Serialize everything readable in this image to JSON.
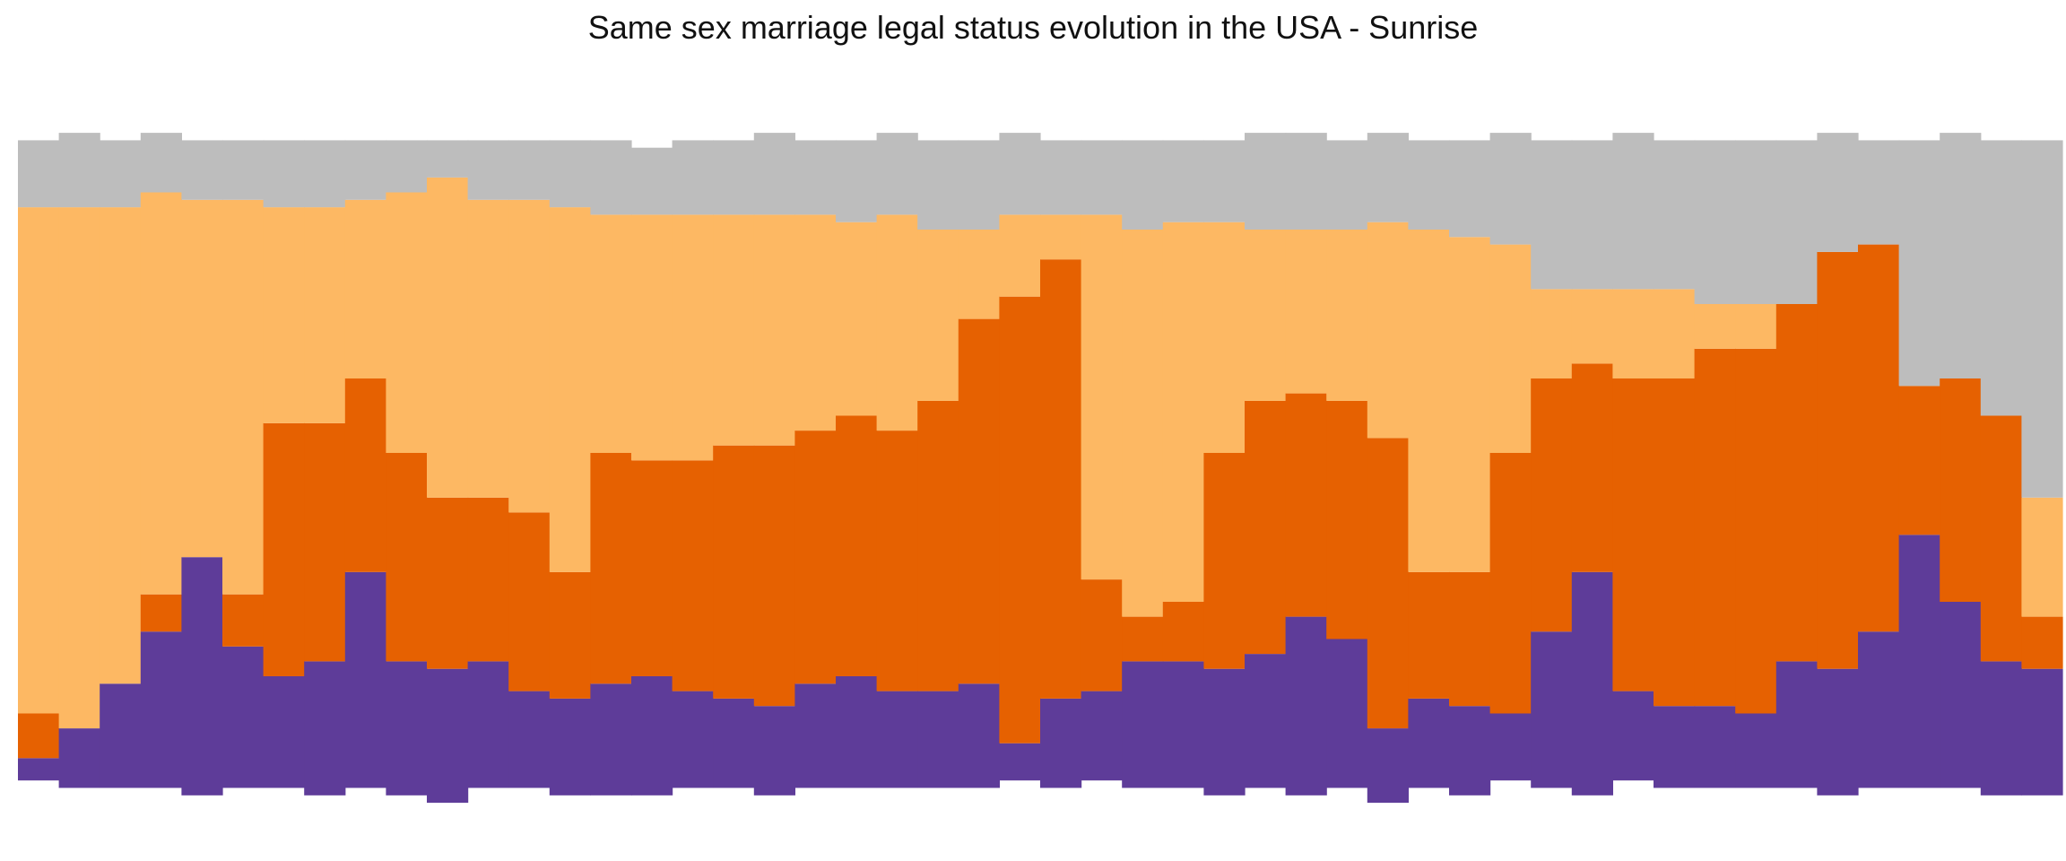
{
  "chart_data": {
    "type": "area",
    "title": "Same sex marriage legal status evolution in the USA - Sunrise",
    "xlabel": "",
    "ylabel": "",
    "axes_visible": false,
    "grid": false,
    "legend": "none",
    "layers_bottom_to_top": [
      "purple",
      "dark-orange",
      "light-orange",
      "gray"
    ],
    "colors": {
      "purple": "#5E3C99",
      "dark-orange": "#E66101",
      "light-orange": "#FDB863",
      "gray": "#BDBDBD"
    },
    "categories": [
      1,
      2,
      3,
      4,
      5,
      6,
      7,
      8,
      9,
      10,
      11,
      12,
      13,
      14,
      15,
      16,
      17,
      18,
      19,
      20,
      21,
      22,
      23,
      24,
      25,
      26,
      27,
      28,
      29,
      30,
      31,
      32,
      33,
      34,
      35,
      36,
      37,
      38,
      39,
      40,
      41,
      42,
      43,
      44,
      45,
      46,
      47,
      48,
      49,
      50
    ],
    "cumulative_tops": {
      "purple": [
        0.09,
        0.13,
        0.19,
        0.26,
        0.36,
        0.24,
        0.2,
        0.22,
        0.34,
        0.22,
        0.21,
        0.22,
        0.18,
        0.17,
        0.19,
        0.2,
        0.18,
        0.17,
        0.16,
        0.19,
        0.2,
        0.18,
        0.18,
        0.19,
        0.11,
        0.17,
        0.18,
        0.22,
        0.22,
        0.21,
        0.23,
        0.28,
        0.25,
        0.13,
        0.17,
        0.16,
        0.15,
        0.26,
        0.34,
        0.18,
        0.16,
        0.16,
        0.15,
        0.22,
        0.21,
        0.26,
        0.39,
        0.3,
        0.22,
        0.21
      ],
      "dark-orange": [
        0.15,
        0.13,
        0.19,
        0.31,
        0.33,
        0.31,
        0.54,
        0.54,
        0.6,
        0.5,
        0.44,
        0.44,
        0.42,
        0.34,
        0.5,
        0.49,
        0.49,
        0.51,
        0.51,
        0.53,
        0.55,
        0.53,
        0.57,
        0.68,
        0.71,
        0.76,
        0.33,
        0.28,
        0.3,
        0.5,
        0.57,
        0.58,
        0.57,
        0.52,
        0.34,
        0.34,
        0.5,
        0.6,
        0.62,
        0.6,
        0.6,
        0.64,
        0.64,
        0.7,
        0.77,
        0.78,
        0.59,
        0.6,
        0.55,
        0.28
      ],
      "light-orange": [
        0.83,
        0.83,
        0.83,
        0.85,
        0.84,
        0.84,
        0.83,
        0.83,
        0.84,
        0.85,
        0.87,
        0.84,
        0.84,
        0.83,
        0.82,
        0.82,
        0.82,
        0.82,
        0.82,
        0.82,
        0.81,
        0.82,
        0.8,
        0.8,
        0.82,
        0.82,
        0.82,
        0.8,
        0.81,
        0.81,
        0.8,
        0.8,
        0.8,
        0.81,
        0.8,
        0.79,
        0.78,
        0.72,
        0.72,
        0.72,
        0.72,
        0.7,
        0.7,
        0.7,
        0.72,
        0.64,
        0.54,
        0.44,
        0.42,
        0.44
      ],
      "gray": [
        0.92,
        0.93,
        0.92,
        0.93,
        0.92,
        0.92,
        0.92,
        0.92,
        0.92,
        0.92,
        0.92,
        0.92,
        0.92,
        0.92,
        0.92,
        0.91,
        0.92,
        0.92,
        0.93,
        0.92,
        0.92,
        0.93,
        0.92,
        0.92,
        0.93,
        0.92,
        0.92,
        0.92,
        0.92,
        0.92,
        0.93,
        0.93,
        0.92,
        0.93,
        0.92,
        0.92,
        0.93,
        0.92,
        0.92,
        0.93,
        0.92,
        0.92,
        0.92,
        0.92,
        0.93,
        0.92,
        0.92,
        0.93,
        0.92,
        0.92
      ]
    },
    "bottoms": [
      0.06,
      0.05,
      0.05,
      0.05,
      0.04,
      0.05,
      0.05,
      0.04,
      0.05,
      0.04,
      0.03,
      0.05,
      0.05,
      0.04,
      0.04,
      0.04,
      0.05,
      0.05,
      0.04,
      0.05,
      0.05,
      0.05,
      0.05,
      0.05,
      0.06,
      0.05,
      0.06,
      0.05,
      0.05,
      0.04,
      0.05,
      0.04,
      0.05,
      0.03,
      0.05,
      0.04,
      0.06,
      0.05,
      0.04,
      0.06,
      0.05,
      0.05,
      0.05,
      0.05,
      0.04,
      0.05,
      0.05,
      0.05,
      0.04,
      0.04
    ]
  }
}
